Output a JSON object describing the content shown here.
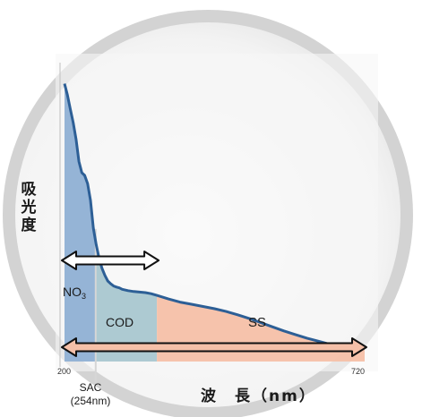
{
  "chart_data": {
    "type": "area",
    "ylabel_chars": [
      "吸",
      "光",
      "度"
    ],
    "xlabel": "波　長（nm）",
    "x_ticks": [
      "200",
      "720"
    ],
    "xlim": [
      200,
      720
    ],
    "x": [
      200,
      205,
      210,
      215,
      220,
      225,
      230,
      235,
      240,
      245,
      250,
      255,
      260,
      265,
      270,
      275,
      280,
      285,
      290,
      295,
      300,
      310,
      320,
      330,
      340,
      350,
      360,
      380,
      400,
      420,
      440,
      460,
      480,
      500,
      520,
      540,
      560,
      580,
      600,
      620,
      640,
      660,
      680,
      700,
      720
    ],
    "y": [
      1.0,
      0.96,
      0.91,
      0.86,
      0.8,
      0.72,
      0.68,
      0.67,
      0.64,
      0.58,
      0.48,
      0.42,
      0.37,
      0.335,
      0.31,
      0.29,
      0.28,
      0.272,
      0.268,
      0.265,
      0.26,
      0.255,
      0.252,
      0.25,
      0.248,
      0.244,
      0.238,
      0.225,
      0.214,
      0.206,
      0.198,
      0.19,
      0.18,
      0.168,
      0.155,
      0.14,
      0.125,
      0.11,
      0.097,
      0.084,
      0.073,
      0.062,
      0.055,
      0.05,
      0.048
    ],
    "ylim": [
      0,
      1.05
    ],
    "regions": [
      {
        "label": "NO3",
        "label_main": "NO",
        "label_sub": "3",
        "from": 200,
        "to": 254,
        "color": "#8fb0d4"
      },
      {
        "label": "COD",
        "from": 254,
        "to": 360,
        "color": "#a9c7d0"
      },
      {
        "label": "SS",
        "from": 360,
        "to": 720,
        "color": "#f5c0a8"
      }
    ],
    "marker": {
      "label_line1": "SAC",
      "label_line2": "(254nm)",
      "x": 254
    },
    "arrows": [
      {
        "from": 200,
        "to": 360,
        "fill": "#ffffff"
      },
      {
        "from": 200,
        "to": 720,
        "fill": "#f5c0a8"
      }
    ],
    "curve_color": "#2d5f96",
    "grid": false
  }
}
